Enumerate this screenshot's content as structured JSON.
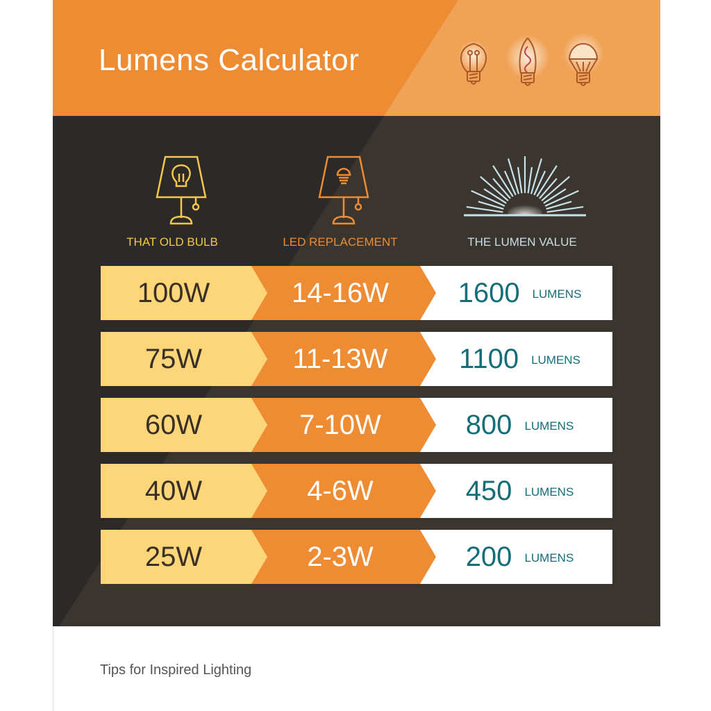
{
  "header": {
    "title": "Lumens Calculator",
    "icons": [
      "incandescent-bulb-icon",
      "edison-filament-bulb-icon",
      "led-bulb-icon"
    ]
  },
  "columns": [
    {
      "label": "THAT OLD BULB",
      "icon": "lamp-incandescent-icon",
      "color": "#f5c84a"
    },
    {
      "label": "LED REPLACEMENT",
      "icon": "lamp-led-icon",
      "color": "#ee8c33"
    },
    {
      "label": "THE LUMEN VALUE",
      "icon": "light-rays-icon",
      "color": "#c8dfe6"
    }
  ],
  "rows": [
    {
      "old": "100W",
      "led": "14-16W",
      "lumens": "1600",
      "unit": "LUMENS"
    },
    {
      "old": "75W",
      "led": "11-13W",
      "lumens": "1100",
      "unit": "LUMENS"
    },
    {
      "old": "60W",
      "led": "7-10W",
      "lumens": "800",
      "unit": "LUMENS"
    },
    {
      "old": "40W",
      "led": "4-6W",
      "lumens": "450",
      "unit": "LUMENS"
    },
    {
      "old": "25W",
      "led": "2-3W",
      "lumens": "200",
      "unit": "LUMENS"
    }
  ],
  "footer": {
    "text": "Tips for Inspired Lighting"
  },
  "colors": {
    "orange": "#ee8c33",
    "yellow": "#fdd679",
    "dark": "#2b2a28",
    "teal": "#146e78"
  }
}
